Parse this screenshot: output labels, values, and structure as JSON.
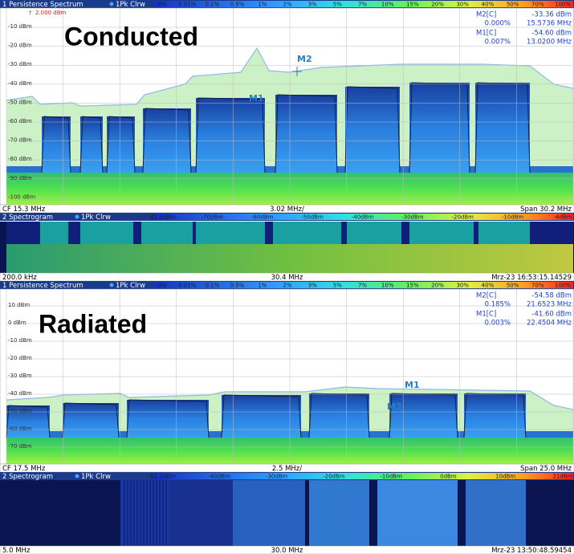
{
  "panels": [
    {
      "persistence": {
        "title": "1 Persistence Spectrum",
        "trace": "1Pk Clrw",
        "scale": [
          "0%",
          "0.01%",
          "0.1%",
          "0.5%",
          "1%",
          "2%",
          "3%",
          "5%",
          "7%",
          "10%",
          "15%",
          "20%",
          "30%",
          "40%",
          "50%",
          "70%",
          "100%"
        ],
        "ref_level": "2.000 dBm",
        "label": "Conducted",
        "y_labels": [
          "-10 dBm",
          "-20 dBm",
          "-30 dBm",
          "-40 dBm",
          "-50 dBm",
          "-60 dBm",
          "-70 dBm",
          "-80 dBm",
          "-90 dBm",
          "-100 dBm"
        ],
        "marker_table": [
          {
            "name": "M2[C]",
            "level": "-33.36 dBm",
            "percent": "0.000%",
            "freq": "15.5736 MHz"
          },
          {
            "name": "M1[C]",
            "level": "-54.60 dBm",
            "percent": "0.007%",
            "freq": "13.0200 MHz"
          }
        ],
        "plot_markers": [
          "M2",
          "M1"
        ],
        "footer": {
          "left": "CF 15.3 MHz",
          "center": "3.02 MHz/",
          "right": "Span 30.2 MHz"
        }
      },
      "spectrogram": {
        "title": "2 Spectrogram",
        "trace": "1Pk Clrw",
        "scale": [
          "-81.2dBm",
          "-70dBm",
          "-60dBm",
          "-50dBm",
          "-40dBm",
          "-30dBm",
          "-20dBm",
          "-10dBm",
          "-4dBm"
        ],
        "footer": {
          "left": "200.0 kHz",
          "center": "30.4 MHz",
          "right": "Mrz-23 16:53:15.14529"
        }
      }
    },
    {
      "persistence": {
        "title": "1 Persistence Spectrum",
        "trace": "1Pk Clrw",
        "scale": [
          "0%",
          "0.01%",
          "0.1%",
          "0.5%",
          "1%",
          "2%",
          "3%",
          "5%",
          "7%",
          "10%",
          "15%",
          "20%",
          "30%",
          "40%",
          "50%",
          "70%",
          "100%"
        ],
        "label": "Radiated",
        "y_labels": [
          "10 dBm",
          "0 dBm",
          "-10 dBm",
          "-20 dBm",
          "-30 dBm",
          "-40 dBm",
          "-50 dBm",
          "-60 dBm",
          "-70 dBm"
        ],
        "marker_table": [
          {
            "name": "M2[C]",
            "level": "-54.58 dBm",
            "percent": "0.185%",
            "freq": "21.6523 MHz"
          },
          {
            "name": "M1[C]",
            "level": "-41.60 dBm",
            "percent": "0.003%",
            "freq": "22.4504 MHz"
          }
        ],
        "plot_markers": [
          "M1",
          "M2"
        ],
        "footer": {
          "left": "CF 17.5 MHz",
          "center": "2.5 MHz/",
          "right": "Span 25.0 MHz"
        }
      },
      "spectrogram": {
        "title": "2 Spectrogram",
        "trace": "1Pk Clrw",
        "scale": [
          "-81.2dBm",
          "-40dBm",
          "-30dBm",
          "-20dBm",
          "-10dBm",
          "0dBm",
          "10dBm",
          "21dBm"
        ],
        "footer": {
          "left": "5.0 MHz",
          "center": "30.0 MHz",
          "right": "Mrz-23 13:50:48.59454"
        }
      }
    }
  ]
}
